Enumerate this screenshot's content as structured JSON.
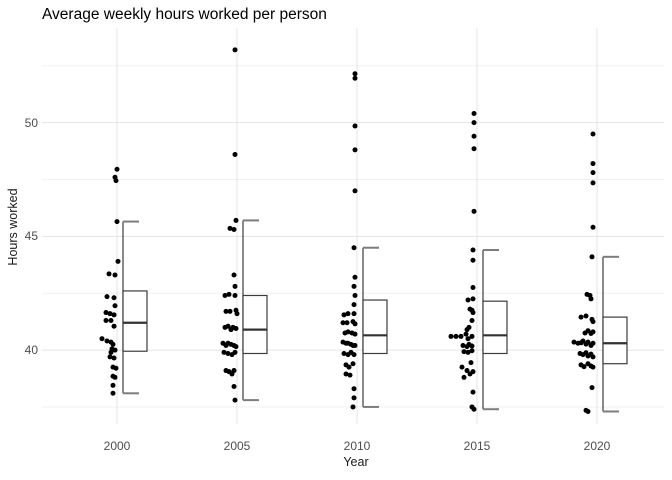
{
  "chart_data": {
    "type": "scatter",
    "subtype": "jittered-points-with-half-boxplots",
    "title": "Average weekly hours worked per person",
    "xlabel": "Year",
    "ylabel": "Hours worked",
    "categories": [
      "2000",
      "2005",
      "2010",
      "2015",
      "2020"
    ],
    "y_major_ticks": [
      40,
      45,
      50
    ],
    "y_minor_ticks": [
      37.5,
      42.5,
      47.5,
      52.5
    ],
    "ylim": [
      36.75,
      54.16
    ],
    "grid": true,
    "legend": "none",
    "colors": {
      "background": "#ffffff",
      "point": "#000000",
      "box_stroke": "#3c3c3c",
      "median_stroke": "#333333",
      "whisker_cap": "#7d7d7d",
      "grid_major": "#e4e4e4",
      "grid_minor": "#f2f2f2",
      "tick_label": "#4d4d4d",
      "title": "#000000",
      "axis_title": "#1a1a1a"
    },
    "groups": [
      {
        "year": "2000",
        "box": {
          "low": 38.1,
          "q1": 39.95,
          "median": 41.2,
          "q3": 42.6,
          "high": 45.65
        },
        "points": [
          [
            0,
            47.95
          ],
          [
            -2,
            47.6
          ],
          [
            -1,
            47.45
          ],
          [
            0,
            45.65
          ],
          [
            1,
            43.9
          ],
          [
            -8,
            43.35
          ],
          [
            -2,
            43.3
          ],
          [
            -10,
            42.35
          ],
          [
            -3,
            42.3
          ],
          [
            -2,
            41.95
          ],
          [
            -11,
            41.65
          ],
          [
            -7,
            41.6
          ],
          [
            -3,
            41.55
          ],
          [
            -11,
            41.3
          ],
          [
            -6,
            41.3
          ],
          [
            -3,
            41.05
          ],
          [
            -15,
            40.5
          ],
          [
            -10,
            40.4
          ],
          [
            -6,
            40.35
          ],
          [
            -4,
            40.25
          ],
          [
            -5,
            40.05
          ],
          [
            -2,
            40.0
          ],
          [
            -6,
            39.9
          ],
          [
            -7,
            39.7
          ],
          [
            -3,
            39.65
          ],
          [
            -4,
            39.25
          ],
          [
            -1,
            39.2
          ],
          [
            -4,
            38.85
          ],
          [
            -2,
            38.8
          ],
          [
            -4,
            38.45
          ],
          [
            -4,
            38.1
          ]
        ]
      },
      {
        "year": "2005",
        "box": {
          "low": 37.8,
          "q1": 39.85,
          "median": 40.9,
          "q3": 42.4,
          "high": 45.7
        },
        "points": [
          [
            -2,
            53.2
          ],
          [
            -2,
            48.6
          ],
          [
            -1,
            45.7
          ],
          [
            -7,
            45.35
          ],
          [
            -3,
            45.3
          ],
          [
            -3,
            43.3
          ],
          [
            -2,
            42.8
          ],
          [
            -12,
            42.4
          ],
          [
            -8,
            42.45
          ],
          [
            -2,
            42.4
          ],
          [
            -11,
            41.7
          ],
          [
            -7,
            41.7
          ],
          [
            -1,
            41.75
          ],
          [
            0,
            41.6
          ],
          [
            -12,
            41.0
          ],
          [
            -9,
            41.05
          ],
          [
            -6,
            40.9
          ],
          [
            -4,
            41.0
          ],
          [
            -1,
            40.95
          ],
          [
            -14,
            40.3
          ],
          [
            -11,
            40.2
          ],
          [
            -9,
            40.3
          ],
          [
            -6,
            40.25
          ],
          [
            -3,
            40.2
          ],
          [
            -1,
            40.15
          ],
          [
            -13,
            39.9
          ],
          [
            -9,
            39.85
          ],
          [
            -5,
            39.8
          ],
          [
            -2,
            39.9
          ],
          [
            -11,
            39.1
          ],
          [
            -8,
            39.05
          ],
          [
            -5,
            38.95
          ],
          [
            -3,
            39.1
          ],
          [
            -3,
            38.4
          ],
          [
            -2,
            37.8
          ]
        ]
      },
      {
        "year": "2010",
        "box": {
          "low": 37.5,
          "q1": 39.85,
          "median": 40.65,
          "q3": 42.2,
          "high": 44.5
        },
        "points": [
          [
            -2,
            52.15
          ],
          [
            -2,
            51.95
          ],
          [
            -2,
            49.85
          ],
          [
            -2,
            48.8
          ],
          [
            -2,
            47.0
          ],
          [
            -3,
            44.5
          ],
          [
            -2,
            43.2
          ],
          [
            -3,
            42.8
          ],
          [
            -2,
            42.4
          ],
          [
            -3,
            42.0
          ],
          [
            -13,
            41.55
          ],
          [
            -9,
            41.6
          ],
          [
            -3,
            41.6
          ],
          [
            -14,
            41.2
          ],
          [
            -10,
            41.2
          ],
          [
            -4,
            41.25
          ],
          [
            -2,
            41.15
          ],
          [
            -12,
            40.75
          ],
          [
            -9,
            40.8
          ],
          [
            -5,
            40.75
          ],
          [
            -2,
            40.7
          ],
          [
            -14,
            40.35
          ],
          [
            -11,
            40.3
          ],
          [
            -9,
            40.3
          ],
          [
            -6,
            40.25
          ],
          [
            -4,
            40.2
          ],
          [
            -2,
            40.2
          ],
          [
            -13,
            39.85
          ],
          [
            -9,
            39.8
          ],
          [
            -6,
            39.9
          ],
          [
            -3,
            39.8
          ],
          [
            -11,
            39.35
          ],
          [
            -8,
            39.25
          ],
          [
            -4,
            39.4
          ],
          [
            -11,
            38.95
          ],
          [
            -7,
            38.9
          ],
          [
            -3,
            38.3
          ],
          [
            -3,
            37.9
          ],
          [
            -4,
            37.5
          ]
        ]
      },
      {
        "year": "2015",
        "box": {
          "low": 37.4,
          "q1": 39.85,
          "median": 40.65,
          "q3": 42.15,
          "high": 44.4
        },
        "points": [
          [
            -3,
            50.4
          ],
          [
            -3,
            50.0
          ],
          [
            -3,
            49.4
          ],
          [
            -3,
            48.85
          ],
          [
            -3,
            46.1
          ],
          [
            -4,
            44.4
          ],
          [
            -4,
            43.95
          ],
          [
            -4,
            42.75
          ],
          [
            -9,
            42.2
          ],
          [
            -4,
            42.25
          ],
          [
            -7,
            41.8
          ],
          [
            -5,
            41.75
          ],
          [
            -4,
            41.65
          ],
          [
            -5,
            41.3
          ],
          [
            -10,
            40.9
          ],
          [
            -8,
            41.0
          ],
          [
            -26,
            40.6
          ],
          [
            -21,
            40.6
          ],
          [
            -16,
            40.6
          ],
          [
            -11,
            40.7
          ],
          [
            -9,
            40.5
          ],
          [
            -5,
            40.6
          ],
          [
            -14,
            40.2
          ],
          [
            -10,
            40.15
          ],
          [
            -8,
            40.25
          ],
          [
            -5,
            40.18
          ],
          [
            -13,
            39.93
          ],
          [
            -9,
            39.9
          ],
          [
            -5,
            39.97
          ],
          [
            -6,
            39.45
          ],
          [
            -15,
            39.25
          ],
          [
            -10,
            39.1
          ],
          [
            -7,
            38.95
          ],
          [
            -4,
            39.05
          ],
          [
            -13,
            38.8
          ],
          [
            -4,
            38.15
          ],
          [
            -5,
            37.5
          ],
          [
            -3,
            37.4
          ]
        ]
      },
      {
        "year": "2020",
        "box": {
          "low": 37.3,
          "q1": 39.4,
          "median": 40.3,
          "q3": 41.45,
          "high": 44.1
        },
        "points": [
          [
            -4,
            49.5
          ],
          [
            -4,
            48.2
          ],
          [
            -4,
            47.8
          ],
          [
            -4,
            47.35
          ],
          [
            -4,
            45.4
          ],
          [
            -5,
            44.1
          ],
          [
            -10,
            42.45
          ],
          [
            -7,
            42.4
          ],
          [
            -6,
            42.25
          ],
          [
            -16,
            41.45
          ],
          [
            -11,
            41.5
          ],
          [
            -5,
            41.35
          ],
          [
            -4,
            41.25
          ],
          [
            -12,
            40.75
          ],
          [
            -9,
            40.85
          ],
          [
            -6,
            40.73
          ],
          [
            -4,
            40.8
          ],
          [
            -23,
            40.35
          ],
          [
            -19,
            40.3
          ],
          [
            -16,
            40.32
          ],
          [
            -14,
            40.4
          ],
          [
            -11,
            40.26
          ],
          [
            -9,
            40.35
          ],
          [
            -6,
            40.2
          ],
          [
            -4,
            40.3
          ],
          [
            -17,
            39.85
          ],
          [
            -14,
            39.8
          ],
          [
            -11,
            39.88
          ],
          [
            -9,
            39.74
          ],
          [
            -6,
            39.82
          ],
          [
            -4,
            39.7
          ],
          [
            -16,
            39.35
          ],
          [
            -13,
            39.27
          ],
          [
            -9,
            39.4
          ],
          [
            -6,
            39.3
          ],
          [
            -4,
            39.25
          ],
          [
            -5,
            38.35
          ],
          [
            -11,
            37.35
          ],
          [
            -9,
            37.3
          ]
        ]
      }
    ]
  }
}
